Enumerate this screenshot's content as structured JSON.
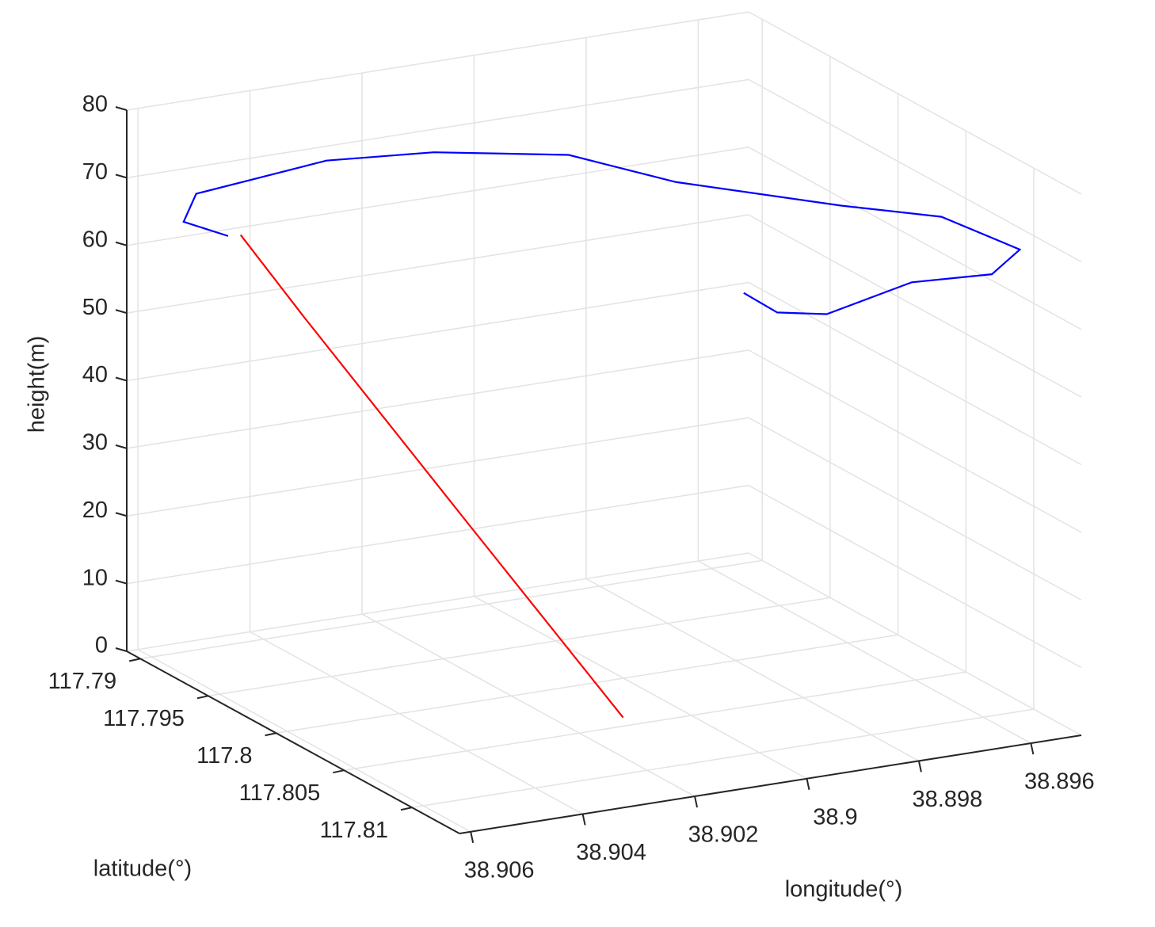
{
  "chart_data": {
    "type": "line3d",
    "xlabel": "latitude(°)",
    "ylabel": "longitude(°)",
    "zlabel": "height(m)",
    "xlim": [
      117.789,
      117.8135
    ],
    "xticks": [
      117.79,
      117.795,
      117.8,
      117.805,
      117.81
    ],
    "ylim": [
      38.8951,
      38.9062
    ],
    "yticks": [
      38.896,
      38.898,
      38.9,
      38.902,
      38.904,
      38.906
    ],
    "zlim": [
      0,
      80
    ],
    "zticks": [
      0,
      10,
      20,
      30,
      40,
      50,
      60,
      70,
      80
    ],
    "grid": true,
    "series": [
      {
        "color": "#ff0000",
        "x": [
          117.7912,
          117.7909,
          117.7949,
          117.8041
        ],
        "y": [
          38.9047,
          38.9035,
          38.9016,
          38.901
        ],
        "z": [
          62,
          48,
          20,
          0
        ]
      },
      {
        "color": "#0000ff",
        "x": [
          117.7911,
          117.7903,
          117.7904,
          117.7913,
          117.7905,
          117.7914,
          117.7939,
          117.7985,
          117.8037,
          117.8065,
          117.8098,
          117.8098,
          117.8072,
          117.8063,
          117.8039,
          117.8006
        ],
        "y": [
          38.9049,
          38.9055,
          38.9053,
          38.9046,
          38.903,
          38.9013,
          38.8995,
          38.8987,
          38.897,
          38.8959,
          38.8953,
          38.8958,
          38.8966,
          38.8979,
          38.8982,
          38.898
        ],
        "z": [
          62,
          64,
          68,
          70,
          70,
          70,
          70,
          70,
          70,
          70,
          68,
          65,
          62,
          58,
          56,
          55
        ]
      }
    ]
  }
}
